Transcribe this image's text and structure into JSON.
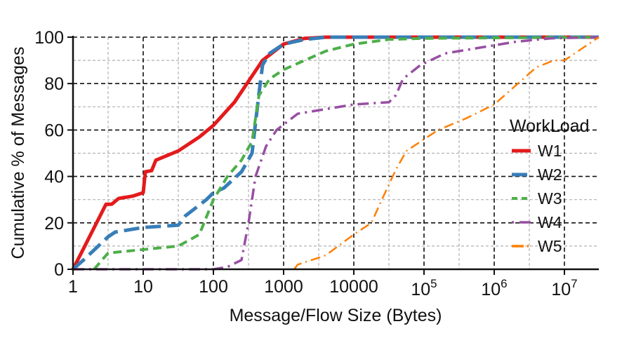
{
  "chart_data": {
    "type": "line",
    "title": "",
    "xlabel": "Message/Flow Size (Bytes)",
    "ylabel": "Cumulative % of Messages",
    "xscale": "log",
    "xlim": [
      1,
      30000000
    ],
    "ylim": [
      0,
      100
    ],
    "x_ticks": [
      1,
      10,
      100,
      1000,
      10000,
      100000,
      1000000,
      10000000
    ],
    "x_tick_labels": [
      "1",
      "10",
      "100",
      "1000",
      "10000",
      "10^5",
      "10^6",
      "10^7"
    ],
    "y_ticks": [
      0,
      20,
      40,
      60,
      80,
      100
    ],
    "y_tick_labels": [
      "0",
      "20",
      "40",
      "60",
      "80",
      "100"
    ],
    "grid": true,
    "legend_position": "right-center, inside",
    "legend_title": "WorkLoad",
    "series": [
      {
        "name": "W1",
        "color": "#e41a1c",
        "style": "solid",
        "log10_x": [
          0,
          0.47,
          0.55,
          0.65,
          0.85,
          1.0,
          1.03,
          1.12,
          1.18,
          1.5,
          1.8,
          2.0,
          2.3,
          2.5,
          2.7,
          3.0,
          3.3,
          3.6,
          7.5
        ],
        "y": [
          0,
          28,
          28,
          30.5,
          31.5,
          33,
          42,
          42.5,
          47,
          51,
          57,
          62,
          72,
          81,
          90,
          97,
          99.5,
          100,
          100
        ]
      },
      {
        "name": "W2",
        "color": "#377eb8",
        "style": "dashed",
        "log10_x": [
          0,
          0.15,
          0.5,
          0.6,
          1.0,
          1.5,
          1.6,
          1.9,
          2.0,
          2.15,
          2.4,
          2.55,
          2.6,
          2.65,
          2.7,
          2.8,
          3.0,
          3.3,
          3.6,
          7.5
        ],
        "y": [
          0,
          4,
          14,
          16,
          18,
          19,
          23,
          30,
          33,
          35,
          42,
          50,
          63,
          76,
          88,
          93,
          97,
          99,
          100,
          100
        ]
      },
      {
        "name": "W3",
        "color": "#4daf4a",
        "style": "short-dashed",
        "log10_x": [
          0.3,
          0.5,
          1.0,
          1.5,
          1.8,
          2.0,
          2.2,
          2.4,
          2.55,
          2.65,
          2.8,
          3.0,
          3.3,
          3.6,
          4.0,
          4.5,
          5.0,
          7.5
        ],
        "y": [
          0,
          7,
          8.5,
          10,
          15,
          30,
          40,
          47,
          55,
          75,
          82,
          86,
          90,
          94,
          97,
          99,
          99.5,
          100
        ]
      },
      {
        "name": "W4",
        "color": "#984ea3",
        "style": "dash-dot",
        "log10_x": [
          0,
          2.0,
          2.2,
          2.4,
          2.5,
          2.6,
          2.75,
          2.9,
          3.2,
          3.6,
          4.0,
          4.5,
          4.6,
          4.7,
          4.95,
          5.3,
          5.8,
          6.3,
          6.8,
          7.5
        ],
        "y": [
          0,
          0,
          1,
          4,
          20,
          40,
          53,
          60,
          67,
          69,
          71,
          72,
          75,
          82,
          88,
          93,
          95.5,
          98,
          99.5,
          100
        ]
      },
      {
        "name": "W5",
        "color": "#ff7f00",
        "style": "long-dash-dot",
        "log10_x": [
          3.15,
          3.2,
          3.6,
          4.0,
          4.25,
          4.4,
          4.6,
          4.75,
          4.95,
          5.2,
          5.6,
          6.0,
          6.3,
          6.6,
          6.85,
          7.0,
          7.5
        ],
        "y": [
          0,
          2,
          6,
          15,
          20,
          30,
          43,
          51,
          55,
          60,
          65,
          71,
          79,
          87,
          90,
          90,
          100
        ]
      }
    ]
  }
}
